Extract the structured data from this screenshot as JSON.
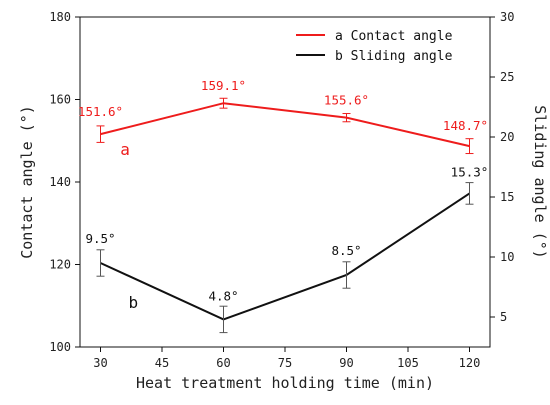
{
  "chart_data": {
    "type": "line",
    "xlabel": "Heat treatment holding time (min)",
    "ylabel_left": "Contact angle (°)",
    "ylabel_right": "Sliding angle (°)",
    "x_ticks": [
      30,
      45,
      60,
      75,
      90,
      105,
      120
    ],
    "xlim": [
      25,
      125
    ],
    "ylim_left": [
      100,
      180
    ],
    "y_ticks_left": [
      100,
      120,
      140,
      160,
      180
    ],
    "ylim_right": [
      2.5,
      30
    ],
    "y_ticks_right": [
      5,
      10,
      15,
      20,
      25,
      30
    ],
    "legend_position": "top-right",
    "series": [
      {
        "name": "a Contact angle",
        "axis": "left",
        "color": "#ee1c1c",
        "x": [
          30,
          60,
          90,
          120
        ],
        "y": [
          151.6,
          159.1,
          155.6,
          148.7
        ],
        "error": [
          2.0,
          1.2,
          1.0,
          1.8
        ],
        "labels": [
          "151.6°",
          "159.1°",
          "155.6°",
          "148.7°"
        ],
        "curve_letter": "a"
      },
      {
        "name": "b Sliding angle",
        "axis": "right",
        "color": "#111111",
        "x": [
          30,
          60,
          90,
          120
        ],
        "y": [
          9.5,
          4.8,
          8.5,
          15.3
        ],
        "error": [
          1.1,
          1.1,
          1.1,
          0.9
        ],
        "labels": [
          "9.5°",
          "4.8°",
          "8.5°",
          "15.3°"
        ],
        "curve_letter": "b"
      }
    ]
  }
}
